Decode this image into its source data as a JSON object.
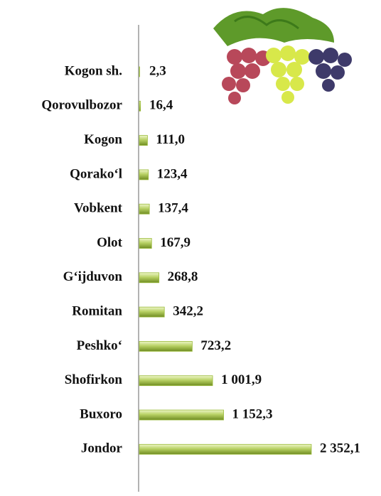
{
  "chart_data": {
    "type": "bar",
    "orientation": "horizontal",
    "categories": [
      "Kogon sh.",
      "Qorovulbozor",
      "Kogon",
      "Qorako‘l",
      "Vobkent",
      "Olot",
      "G‘ijduvon",
      "Romitan",
      "Peshko‘",
      "Shofirkon",
      "Buxoro",
      "Jondor"
    ],
    "values": [
      2.3,
      16.4,
      111.0,
      123.4,
      137.4,
      167.9,
      268.8,
      342.2,
      723.2,
      1001.9,
      1152.3,
      2352.1
    ],
    "value_labels": [
      "2,3",
      "16,4",
      "111,0",
      "123,4",
      "137,4",
      "167,9",
      "268,8",
      "342,2",
      "723,2",
      "1 001,9",
      "1 152,3",
      "2 352,1"
    ],
    "color": "#9bbb3c"
  }
}
